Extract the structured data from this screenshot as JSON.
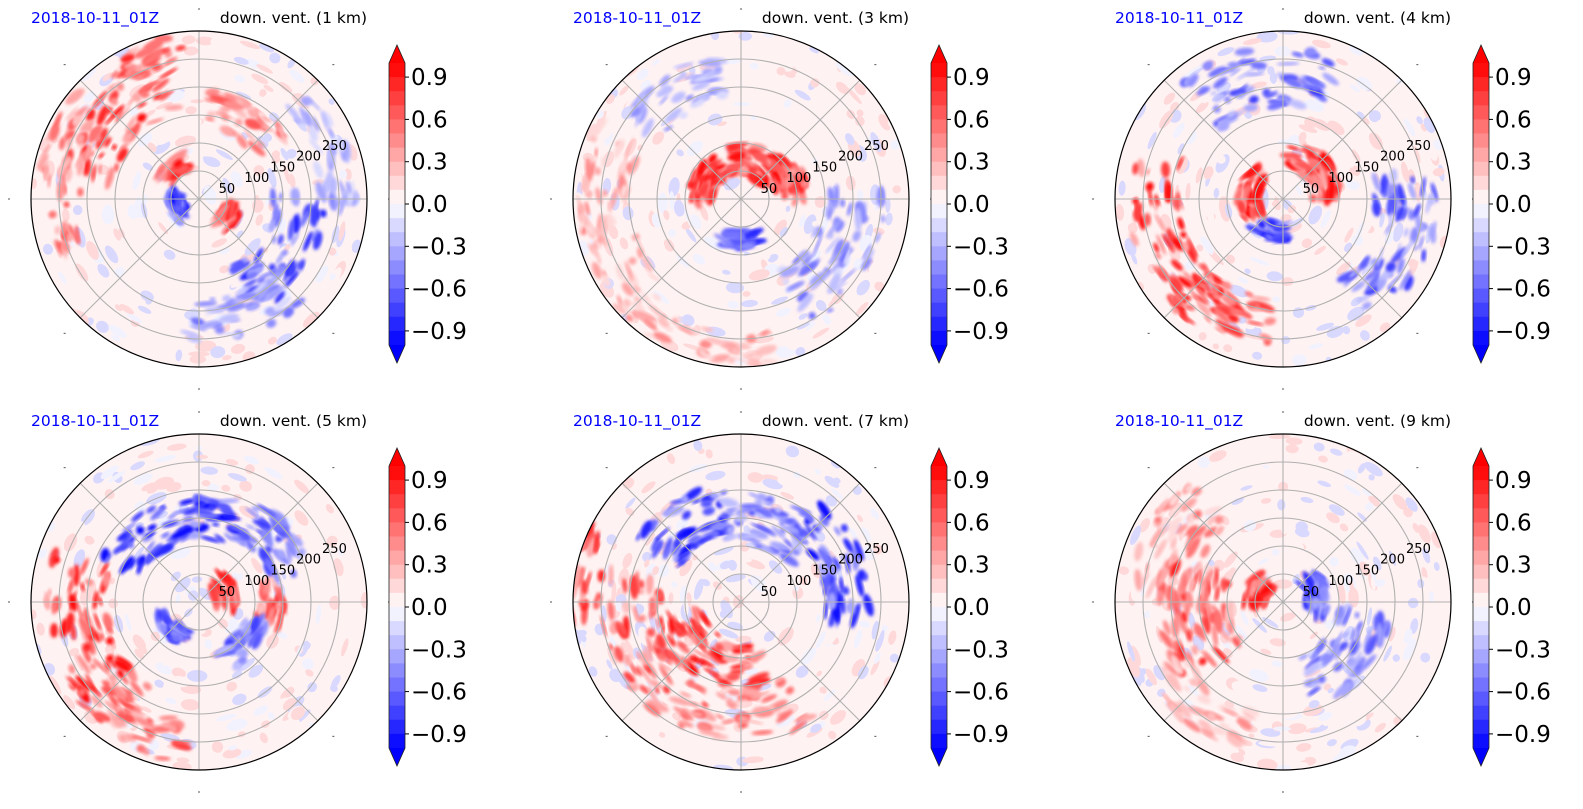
{
  "chart_data": {
    "type": "heatmap",
    "subtype": "polar-filled-contour",
    "figure_layout": "2x3 grid",
    "common": {
      "left_title": "2018-10-11_01Z",
      "radial_ticks": [
        50,
        100,
        150,
        200,
        250
      ],
      "radial_max": 300,
      "angular_gridlines_deg": [
        0,
        45,
        90,
        135,
        180,
        225,
        270,
        315
      ],
      "colorbar": {
        "vmin": -1.0,
        "vmax": 1.0,
        "levels_step": 0.1,
        "extend": "both",
        "ticks": [
          0.9,
          0.6,
          0.3,
          0.0,
          -0.3,
          -0.6,
          -0.9
        ],
        "tick_labels": [
          "0.9",
          "0.6",
          "0.3",
          "0.0",
          "−0.3",
          "−0.6",
          "−0.9"
        ],
        "colormap": "bwr",
        "negative_color": "#0000ff",
        "positive_color": "#ff0000",
        "neutral_color": "#ffffff"
      }
    },
    "panels": [
      {
        "title_left": "2018-10-11_01Z",
        "title_right": "down. vent. (1 km)",
        "height_km": 1,
        "summary": "Positive (red) bands dominate the NW/W outer region; negative (blue) streaks in the E/SE quadrant and near center",
        "features": [
          {
            "sign": 1,
            "angle_deg": 135,
            "r_km": 210,
            "strength": 0.9,
            "spread_deg": 40,
            "spread_km": 70
          },
          {
            "sign": 1,
            "angle_deg": 170,
            "r_km": 250,
            "strength": 0.6,
            "spread_deg": 40,
            "spread_km": 50
          },
          {
            "sign": 1,
            "angle_deg": 110,
            "r_km": 270,
            "strength": 0.8,
            "spread_deg": 20,
            "spread_km": 30
          },
          {
            "sign": 1,
            "angle_deg": 130,
            "r_km": 70,
            "strength": 0.9,
            "spread_deg": 20,
            "spread_km": 20
          },
          {
            "sign": 1,
            "angle_deg": 330,
            "r_km": 60,
            "strength": 0.9,
            "spread_deg": 20,
            "spread_km": 20
          },
          {
            "sign": 1,
            "angle_deg": 60,
            "r_km": 160,
            "strength": 0.6,
            "spread_deg": 30,
            "spread_km": 40
          },
          {
            "sign": -1,
            "angle_deg": 330,
            "r_km": 180,
            "strength": 0.8,
            "spread_deg": 40,
            "spread_km": 60
          },
          {
            "sign": -1,
            "angle_deg": 290,
            "r_km": 220,
            "strength": 0.5,
            "spread_deg": 30,
            "spread_km": 50
          },
          {
            "sign": -1,
            "angle_deg": 200,
            "r_km": 40,
            "strength": 0.9,
            "spread_deg": 40,
            "spread_km": 20
          },
          {
            "sign": -1,
            "angle_deg": 20,
            "r_km": 250,
            "strength": 0.4,
            "spread_deg": 30,
            "spread_km": 40
          }
        ]
      },
      {
        "title_left": "2018-10-11_01Z",
        "title_right": "down. vent. (3 km)",
        "height_km": 3,
        "summary": "Strong positive core ring N/NE of center within 100 km; weak positive outer ring; scattered negative in E and SE",
        "features": [
          {
            "sign": 1,
            "angle_deg": 60,
            "r_km": 70,
            "strength": 1.0,
            "spread_deg": 60,
            "spread_km": 35
          },
          {
            "sign": 1,
            "angle_deg": 150,
            "r_km": 70,
            "strength": 1.0,
            "spread_deg": 40,
            "spread_km": 30
          },
          {
            "sign": 1,
            "angle_deg": 20,
            "r_km": 100,
            "strength": 0.9,
            "spread_deg": 30,
            "spread_km": 30
          },
          {
            "sign": 1,
            "angle_deg": 190,
            "r_km": 240,
            "strength": 0.4,
            "spread_deg": 50,
            "spread_km": 60
          },
          {
            "sign": 1,
            "angle_deg": 250,
            "r_km": 270,
            "strength": 0.4,
            "spread_deg": 40,
            "spread_km": 40
          },
          {
            "sign": -1,
            "angle_deg": 330,
            "r_km": 200,
            "strength": 0.5,
            "spread_deg": 40,
            "spread_km": 70
          },
          {
            "sign": -1,
            "angle_deg": 270,
            "r_km": 70,
            "strength": 0.8,
            "spread_deg": 30,
            "spread_km": 20
          },
          {
            "sign": -1,
            "angle_deg": 120,
            "r_km": 220,
            "strength": 0.4,
            "spread_deg": 30,
            "spread_km": 50
          }
        ]
      },
      {
        "title_left": "2018-10-11_01Z",
        "title_right": "down. vent. (4 km)",
        "height_km": 4,
        "summary": "Strong positive arc W/SW at 150–300 km; positive core NE within 100 km; negative bands N and E",
        "features": [
          {
            "sign": 1,
            "angle_deg": 200,
            "r_km": 230,
            "strength": 1.0,
            "spread_deg": 50,
            "spread_km": 60
          },
          {
            "sign": 1,
            "angle_deg": 240,
            "r_km": 220,
            "strength": 0.8,
            "spread_deg": 30,
            "spread_km": 50
          },
          {
            "sign": 1,
            "angle_deg": 40,
            "r_km": 80,
            "strength": 1.0,
            "spread_deg": 50,
            "spread_km": 35
          },
          {
            "sign": 1,
            "angle_deg": 170,
            "r_km": 60,
            "strength": 1.0,
            "spread_deg": 50,
            "spread_km": 25
          },
          {
            "sign": -1,
            "angle_deg": 100,
            "r_km": 220,
            "strength": 0.7,
            "spread_deg": 40,
            "spread_km": 70
          },
          {
            "sign": -1,
            "angle_deg": 340,
            "r_km": 220,
            "strength": 0.7,
            "spread_deg": 40,
            "spread_km": 70
          },
          {
            "sign": -1,
            "angle_deg": 250,
            "r_km": 60,
            "strength": 0.9,
            "spread_deg": 30,
            "spread_km": 20
          }
        ]
      },
      {
        "title_left": "2018-10-11_01Z",
        "title_right": "down. vent. (5 km)",
        "height_km": 5,
        "summary": "Positive W/SW outer arc; negative ring N and NE around 100–200 km; mixed core",
        "features": [
          {
            "sign": 1,
            "angle_deg": 200,
            "r_km": 220,
            "strength": 1.0,
            "spread_deg": 50,
            "spread_km": 70
          },
          {
            "sign": 1,
            "angle_deg": 240,
            "r_km": 250,
            "strength": 0.7,
            "spread_deg": 30,
            "spread_km": 50
          },
          {
            "sign": 1,
            "angle_deg": 20,
            "r_km": 50,
            "strength": 0.9,
            "spread_deg": 40,
            "spread_km": 25
          },
          {
            "sign": 1,
            "angle_deg": 0,
            "r_km": 130,
            "strength": 0.8,
            "spread_deg": 20,
            "spread_km": 30
          },
          {
            "sign": -1,
            "angle_deg": 110,
            "r_km": 150,
            "strength": 1.0,
            "spread_deg": 60,
            "spread_km": 50
          },
          {
            "sign": -1,
            "angle_deg": 40,
            "r_km": 170,
            "strength": 0.7,
            "spread_deg": 30,
            "spread_km": 50
          },
          {
            "sign": -1,
            "angle_deg": 320,
            "r_km": 110,
            "strength": 0.7,
            "spread_deg": 30,
            "spread_km": 30
          },
          {
            "sign": -1,
            "angle_deg": 220,
            "r_km": 70,
            "strength": 0.8,
            "spread_deg": 30,
            "spread_km": 20
          }
        ]
      },
      {
        "title_left": "2018-10-11_01Z",
        "title_right": "down. vent. (7 km)",
        "height_km": 7,
        "summary": "Strong positive S/SW of center (50–200 km); positive W outer arc; negative streaks NW and E",
        "features": [
          {
            "sign": 1,
            "angle_deg": 240,
            "r_km": 110,
            "strength": 1.0,
            "spread_deg": 60,
            "spread_km": 50
          },
          {
            "sign": 1,
            "angle_deg": 200,
            "r_km": 200,
            "strength": 0.8,
            "spread_deg": 40,
            "spread_km": 70
          },
          {
            "sign": 1,
            "angle_deg": 270,
            "r_km": 200,
            "strength": 0.6,
            "spread_deg": 40,
            "spread_km": 60
          },
          {
            "sign": 1,
            "angle_deg": 170,
            "r_km": 290,
            "strength": 0.9,
            "spread_deg": 20,
            "spread_km": 20
          },
          {
            "sign": -1,
            "angle_deg": 125,
            "r_km": 170,
            "strength": 0.9,
            "spread_deg": 30,
            "spread_km": 60
          },
          {
            "sign": -1,
            "angle_deg": 20,
            "r_km": 190,
            "strength": 0.9,
            "spread_deg": 40,
            "spread_km": 50
          },
          {
            "sign": -1,
            "angle_deg": 70,
            "r_km": 150,
            "strength": 0.6,
            "spread_deg": 40,
            "spread_km": 60
          }
        ]
      },
      {
        "title_left": "2018-10-11_01Z",
        "title_right": "down. vent. (9 km)",
        "height_km": 9,
        "summary": "Moderate positive WSW sector 50–250 km; weak negative E/SE and near-center streaks",
        "features": [
          {
            "sign": 1,
            "angle_deg": 190,
            "r_km": 160,
            "strength": 0.8,
            "spread_deg": 40,
            "spread_km": 80
          },
          {
            "sign": 1,
            "angle_deg": 150,
            "r_km": 220,
            "strength": 0.5,
            "spread_deg": 30,
            "spread_km": 70
          },
          {
            "sign": 1,
            "angle_deg": 160,
            "r_km": 50,
            "strength": 0.9,
            "spread_deg": 30,
            "spread_km": 25
          },
          {
            "sign": 1,
            "angle_deg": 230,
            "r_km": 240,
            "strength": 0.4,
            "spread_deg": 30,
            "spread_km": 50
          },
          {
            "sign": -1,
            "angle_deg": 320,
            "r_km": 150,
            "strength": 0.6,
            "spread_deg": 40,
            "spread_km": 60
          },
          {
            "sign": -1,
            "angle_deg": 10,
            "r_km": 60,
            "strength": 0.8,
            "spread_deg": 40,
            "spread_km": 25
          }
        ]
      }
    ]
  }
}
